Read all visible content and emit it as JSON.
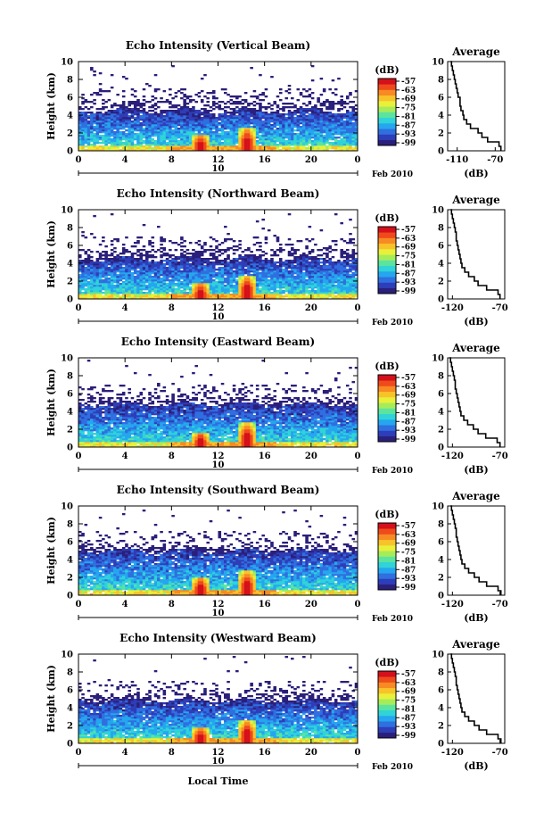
{
  "figure": {
    "bottom_label": "Local Time",
    "date_label": "Feb 2010"
  },
  "colorbar": {
    "unit": "(dB)",
    "ticks": [
      "-57",
      "-63",
      "-69",
      "-75",
      "-81",
      "-87",
      "-93",
      "-99"
    ],
    "colors": [
      "#2a1f7a",
      "#2e3db8",
      "#2f6fe0",
      "#25a6ef",
      "#2fd3d8",
      "#5be4a0",
      "#a6ec5a",
      "#e9f03a",
      "#f7c22a",
      "#f78a22",
      "#ef4a1c",
      "#d4101a"
    ]
  },
  "chart_data": [
    {
      "type": "heatmap",
      "title": "Echo Intensity (Vertical Beam)",
      "ylabel": "Height (km)",
      "ylim": [
        0,
        10
      ],
      "yticks": [
        "0",
        "2",
        "4",
        "6",
        "8",
        "10"
      ],
      "xlim": [
        0,
        24
      ],
      "xticks": [
        "0",
        "4",
        "8",
        "12",
        "16",
        "20",
        "0"
      ],
      "day_label": "10",
      "color_range_dB": [
        -99,
        -57
      ],
      "layers": {
        "dense_top_km": 4.5,
        "sparse_top_km": 7.0
      },
      "peaks": [
        {
          "time_h": 10.5,
          "height_km": 1.5
        },
        {
          "time_h": 14.5,
          "height_km": 2.2
        }
      ],
      "avg_profile": {
        "title": "Average",
        "xlabel": "(dB)",
        "xticks": [
          "-110",
          "-70"
        ],
        "xlim": [
          -120,
          -60
        ],
        "height_km": [
          0,
          0.5,
          1,
          1.5,
          2,
          2.5,
          3,
          3.5,
          4,
          4.5,
          5,
          5.5,
          6,
          6.5,
          7,
          7.5,
          8,
          8.5,
          9,
          9.5,
          10
        ],
        "values_dB": [
          -64,
          -66,
          -78,
          -84,
          -88,
          -96,
          -100,
          -103,
          -104,
          -106,
          -107,
          -107,
          -109,
          -110,
          -111,
          -112,
          -113,
          -114,
          -115,
          -116,
          -117
        ]
      }
    },
    {
      "type": "heatmap",
      "title": "Echo Intensity (Northward Beam)",
      "ylabel": "Height (km)",
      "ylim": [
        0,
        10
      ],
      "yticks": [
        "0",
        "2",
        "4",
        "6",
        "8",
        "10"
      ],
      "xlim": [
        0,
        24
      ],
      "xticks": [
        "0",
        "4",
        "8",
        "12",
        "16",
        "20",
        "0"
      ],
      "day_label": "10",
      "color_range_dB": [
        -99,
        -57
      ],
      "layers": {
        "dense_top_km": 4.5,
        "sparse_top_km": 7.0
      },
      "peaks": [
        {
          "time_h": 10.5,
          "height_km": 1.4
        },
        {
          "time_h": 14.5,
          "height_km": 2.3
        }
      ],
      "avg_profile": {
        "title": "Average",
        "xlabel": "(dB)",
        "xticks": [
          "-120",
          "-70"
        ],
        "xlim": [
          -125,
          -65
        ],
        "height_km": [
          0,
          0.5,
          1,
          1.5,
          2,
          2.5,
          3,
          3.5,
          4,
          4.5,
          5,
          5.5,
          6,
          6.5,
          7,
          7.5,
          8,
          8.5,
          9,
          9.5,
          10
        ],
        "values_dB": [
          -70,
          -72,
          -84,
          -93,
          -97,
          -103,
          -107,
          -110,
          -111,
          -112,
          -113,
          -114,
          -115,
          -116,
          -116,
          -117,
          -118,
          -119,
          -120,
          -121,
          -122
        ]
      }
    },
    {
      "type": "heatmap",
      "title": "Echo Intensity (Eastward Beam)",
      "ylabel": "Height (km)",
      "ylim": [
        0,
        10
      ],
      "yticks": [
        "0",
        "2",
        "4",
        "6",
        "8",
        "10"
      ],
      "xlim": [
        0,
        24
      ],
      "xticks": [
        "0",
        "4",
        "8",
        "12",
        "16",
        "20",
        "0"
      ],
      "day_label": "10",
      "color_range_dB": [
        -99,
        -57
      ],
      "layers": {
        "dense_top_km": 4.8,
        "sparse_top_km": 7.0
      },
      "peaks": [
        {
          "time_h": 10.5,
          "height_km": 1.3
        },
        {
          "time_h": 14.5,
          "height_km": 2.4
        }
      ],
      "avg_profile": {
        "title": "Average",
        "xlabel": "(dB)",
        "xticks": [
          "-120",
          "-70"
        ],
        "xlim": [
          -125,
          -65
        ],
        "height_km": [
          0,
          0.5,
          1,
          1.5,
          2,
          2.5,
          3,
          3.5,
          4,
          4.5,
          5,
          5.5,
          6,
          6.5,
          7,
          7.5,
          8,
          8.5,
          9,
          9.5,
          10
        ],
        "values_dB": [
          -70,
          -73,
          -85,
          -93,
          -98,
          -104,
          -108,
          -111,
          -112,
          -113,
          -114,
          -115,
          -116,
          -117,
          -117,
          -118,
          -119,
          -120,
          -121,
          -122,
          -123
        ]
      }
    },
    {
      "type": "heatmap",
      "title": "Echo Intensity (Southward Beam)",
      "ylabel": "Height (km)",
      "ylim": [
        0,
        10
      ],
      "yticks": [
        "0",
        "2",
        "4",
        "6",
        "8",
        "10"
      ],
      "xlim": [
        0,
        24
      ],
      "xticks": [
        "0",
        "4",
        "8",
        "12",
        "16",
        "20",
        "0"
      ],
      "day_label": "10",
      "color_range_dB": [
        -99,
        -57
      ],
      "layers": {
        "dense_top_km": 5.0,
        "sparse_top_km": 7.2
      },
      "peaks": [
        {
          "time_h": 10.5,
          "height_km": 1.6
        },
        {
          "time_h": 14.5,
          "height_km": 2.4
        }
      ],
      "avg_profile": {
        "title": "Average",
        "xlabel": "(dB)",
        "xticks": [
          "-120",
          "-70"
        ],
        "xlim": [
          -125,
          -65
        ],
        "height_km": [
          0,
          0.5,
          1,
          1.5,
          2,
          2.5,
          3,
          3.5,
          4,
          4.5,
          5,
          5.5,
          6,
          6.5,
          7,
          7.5,
          8,
          8.5,
          9,
          9.5,
          10
        ],
        "values_dB": [
          -69,
          -72,
          -84,
          -92,
          -97,
          -103,
          -107,
          -110,
          -111,
          -112,
          -113,
          -114,
          -115,
          -116,
          -116,
          -117,
          -118,
          -119,
          -120,
          -121,
          -122
        ]
      }
    },
    {
      "type": "heatmap",
      "title": "Echo Intensity (Westward Beam)",
      "ylabel": "Height (km)",
      "ylim": [
        0,
        10
      ],
      "yticks": [
        "0",
        "2",
        "4",
        "6",
        "8",
        "10"
      ],
      "xlim": [
        0,
        24
      ],
      "xticks": [
        "0",
        "4",
        "8",
        "12",
        "16",
        "20",
        "0"
      ],
      "day_label": "10",
      "color_range_dB": [
        -99,
        -57
      ],
      "layers": {
        "dense_top_km": 4.8,
        "sparse_top_km": 7.0
      },
      "peaks": [
        {
          "time_h": 10.5,
          "height_km": 1.5
        },
        {
          "time_h": 14.5,
          "height_km": 2.3
        }
      ],
      "avg_profile": {
        "title": "Average",
        "xlabel": "(dB)",
        "xticks": [
          "-120",
          "-70"
        ],
        "xlim": [
          -125,
          -65
        ],
        "height_km": [
          0,
          0.5,
          1,
          1.5,
          2,
          2.5,
          3,
          3.5,
          4,
          4.5,
          5,
          5.5,
          6,
          6.5,
          7,
          7.5,
          8,
          8.5,
          9,
          9.5,
          10
        ],
        "values_dB": [
          -69,
          -72,
          -84,
          -92,
          -97,
          -103,
          -107,
          -110,
          -111,
          -112,
          -113,
          -114,
          -115,
          -116,
          -116,
          -117,
          -118,
          -119,
          -120,
          -121,
          -122
        ]
      }
    }
  ]
}
